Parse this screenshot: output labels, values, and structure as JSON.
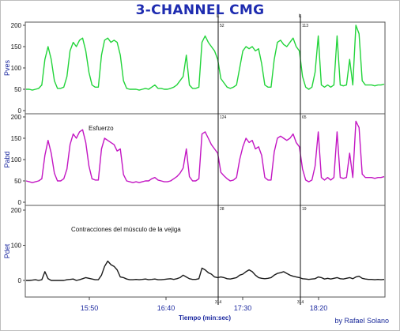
{
  "title": "3-CHANNEL CMG",
  "credit": "by Rafael Solano",
  "chart_data": [
    {
      "type": "line",
      "ylabel": "Pves",
      "color": "#22d43a",
      "ylim": [
        0,
        200
      ],
      "yticks": [
        0,
        50,
        100,
        150,
        200
      ],
      "series": [
        {
          "values": [
            50,
            50,
            48,
            50,
            52,
            60,
            120,
            150,
            120,
            70,
            52,
            52,
            55,
            80,
            140,
            160,
            150,
            165,
            170,
            140,
            90,
            60,
            55,
            55,
            130,
            165,
            170,
            160,
            165,
            160,
            130,
            70,
            52,
            50,
            50,
            50,
            48,
            50,
            52,
            50,
            55,
            60,
            52,
            52,
            50,
            50,
            52,
            55,
            60,
            70,
            80,
            130,
            60,
            52,
            52,
            55,
            160,
            175,
            160,
            150,
            140,
            120,
            75,
            65,
            55,
            52,
            55,
            60,
            100,
            140,
            150,
            145,
            150,
            140,
            145,
            110,
            60,
            55,
            55,
            120,
            160,
            165,
            155,
            150,
            160,
            170,
            150,
            140,
            80,
            55,
            50,
            55,
            90,
            175,
            60,
            55,
            60,
            55,
            60,
            175,
            60,
            58,
            60,
            120,
            60,
            200,
            180,
            70,
            60,
            60,
            60,
            58,
            60,
            60,
            62
          ]
        }
      ]
    },
    {
      "type": "line",
      "ylabel": "Pabd",
      "color": "#c316c3",
      "ylim": [
        0,
        200
      ],
      "yticks": [
        0,
        50,
        100,
        150,
        200
      ],
      "annotation": "Esfuerzo",
      "series": [
        {
          "values": [
            50,
            48,
            46,
            48,
            50,
            55,
            110,
            145,
            115,
            68,
            50,
            50,
            55,
            78,
            135,
            160,
            150,
            165,
            170,
            140,
            85,
            55,
            52,
            52,
            125,
            150,
            145,
            140,
            135,
            120,
            125,
            65,
            50,
            48,
            46,
            48,
            46,
            48,
            50,
            50,
            55,
            58,
            52,
            50,
            48,
            48,
            50,
            55,
            60,
            68,
            80,
            125,
            60,
            50,
            50,
            55,
            160,
            165,
            150,
            135,
            125,
            115,
            70,
            62,
            55,
            50,
            52,
            58,
            100,
            130,
            150,
            140,
            145,
            125,
            130,
            110,
            58,
            52,
            52,
            118,
            150,
            155,
            150,
            145,
            150,
            160,
            140,
            130,
            78,
            52,
            48,
            52,
            85,
            165,
            58,
            52,
            58,
            52,
            58,
            165,
            58,
            56,
            58,
            115,
            58,
            190,
            175,
            66,
            58,
            58,
            58,
            56,
            58,
            58,
            60
          ]
        }
      ]
    },
    {
      "type": "line",
      "ylabel": "Pdet",
      "color": "#1a1a1a",
      "ylim": [
        0,
        200
      ],
      "yticks": [
        0,
        100,
        200
      ],
      "annotation": "Contracciones del músculo de la vejiga",
      "series": [
        {
          "values": [
            0,
            0,
            1,
            2,
            0,
            2,
            25,
            5,
            0,
            0,
            0,
            0,
            0,
            2,
            3,
            4,
            0,
            2,
            5,
            8,
            6,
            4,
            2,
            2,
            15,
            40,
            55,
            45,
            40,
            30,
            10,
            8,
            4,
            2,
            2,
            3,
            2,
            3,
            4,
            2,
            3,
            4,
            2,
            2,
            3,
            4,
            5,
            3,
            5,
            8,
            15,
            10,
            5,
            3,
            3,
            5,
            35,
            30,
            22,
            18,
            10,
            8,
            10,
            8,
            5,
            4,
            6,
            8,
            15,
            18,
            25,
            30,
            25,
            15,
            8,
            6,
            5,
            6,
            8,
            15,
            20,
            22,
            25,
            20,
            15,
            12,
            10,
            8,
            5,
            4,
            3,
            4,
            5,
            10,
            8,
            4,
            6,
            4,
            6,
            8,
            5,
            4,
            6,
            8,
            5,
            10,
            12,
            6,
            4,
            3,
            3,
            2,
            3,
            2,
            3
          ]
        }
      ]
    }
  ],
  "x_axis": {
    "xlabel": "Tiempo (min:sec)",
    "ticks": [
      "15:50",
      "16:40",
      "17:30",
      "18:20"
    ]
  },
  "markers": {
    "line_1": {
      "top_label": "L",
      "panel_labels": [
        "52",
        "124",
        "28"
      ],
      "bottom_label": "314"
    },
    "line_2": {
      "top_label": "L",
      "panel_labels": [
        "113",
        "65",
        "19"
      ],
      "bottom_label": "314"
    }
  }
}
